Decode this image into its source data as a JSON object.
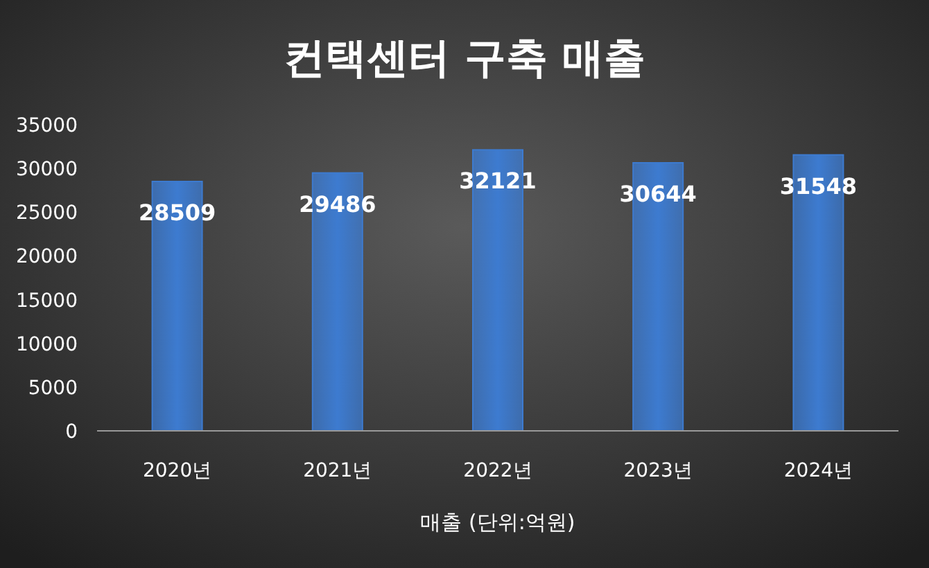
{
  "chart_data": {
    "type": "bar",
    "title": "컨택센터 구축 매출",
    "xlabel": "매출 (단위:억원)",
    "categories": [
      "2020년",
      "2021년",
      "2022년",
      "2023년",
      "2024년"
    ],
    "values": [
      28509,
      29486,
      32121,
      30644,
      31548
    ],
    "color": "#3d7bd0",
    "ylim": [
      0,
      35000
    ],
    "yticks": [
      0,
      5000,
      10000,
      15000,
      20000,
      25000,
      30000,
      35000
    ],
    "data_labels": true
  }
}
